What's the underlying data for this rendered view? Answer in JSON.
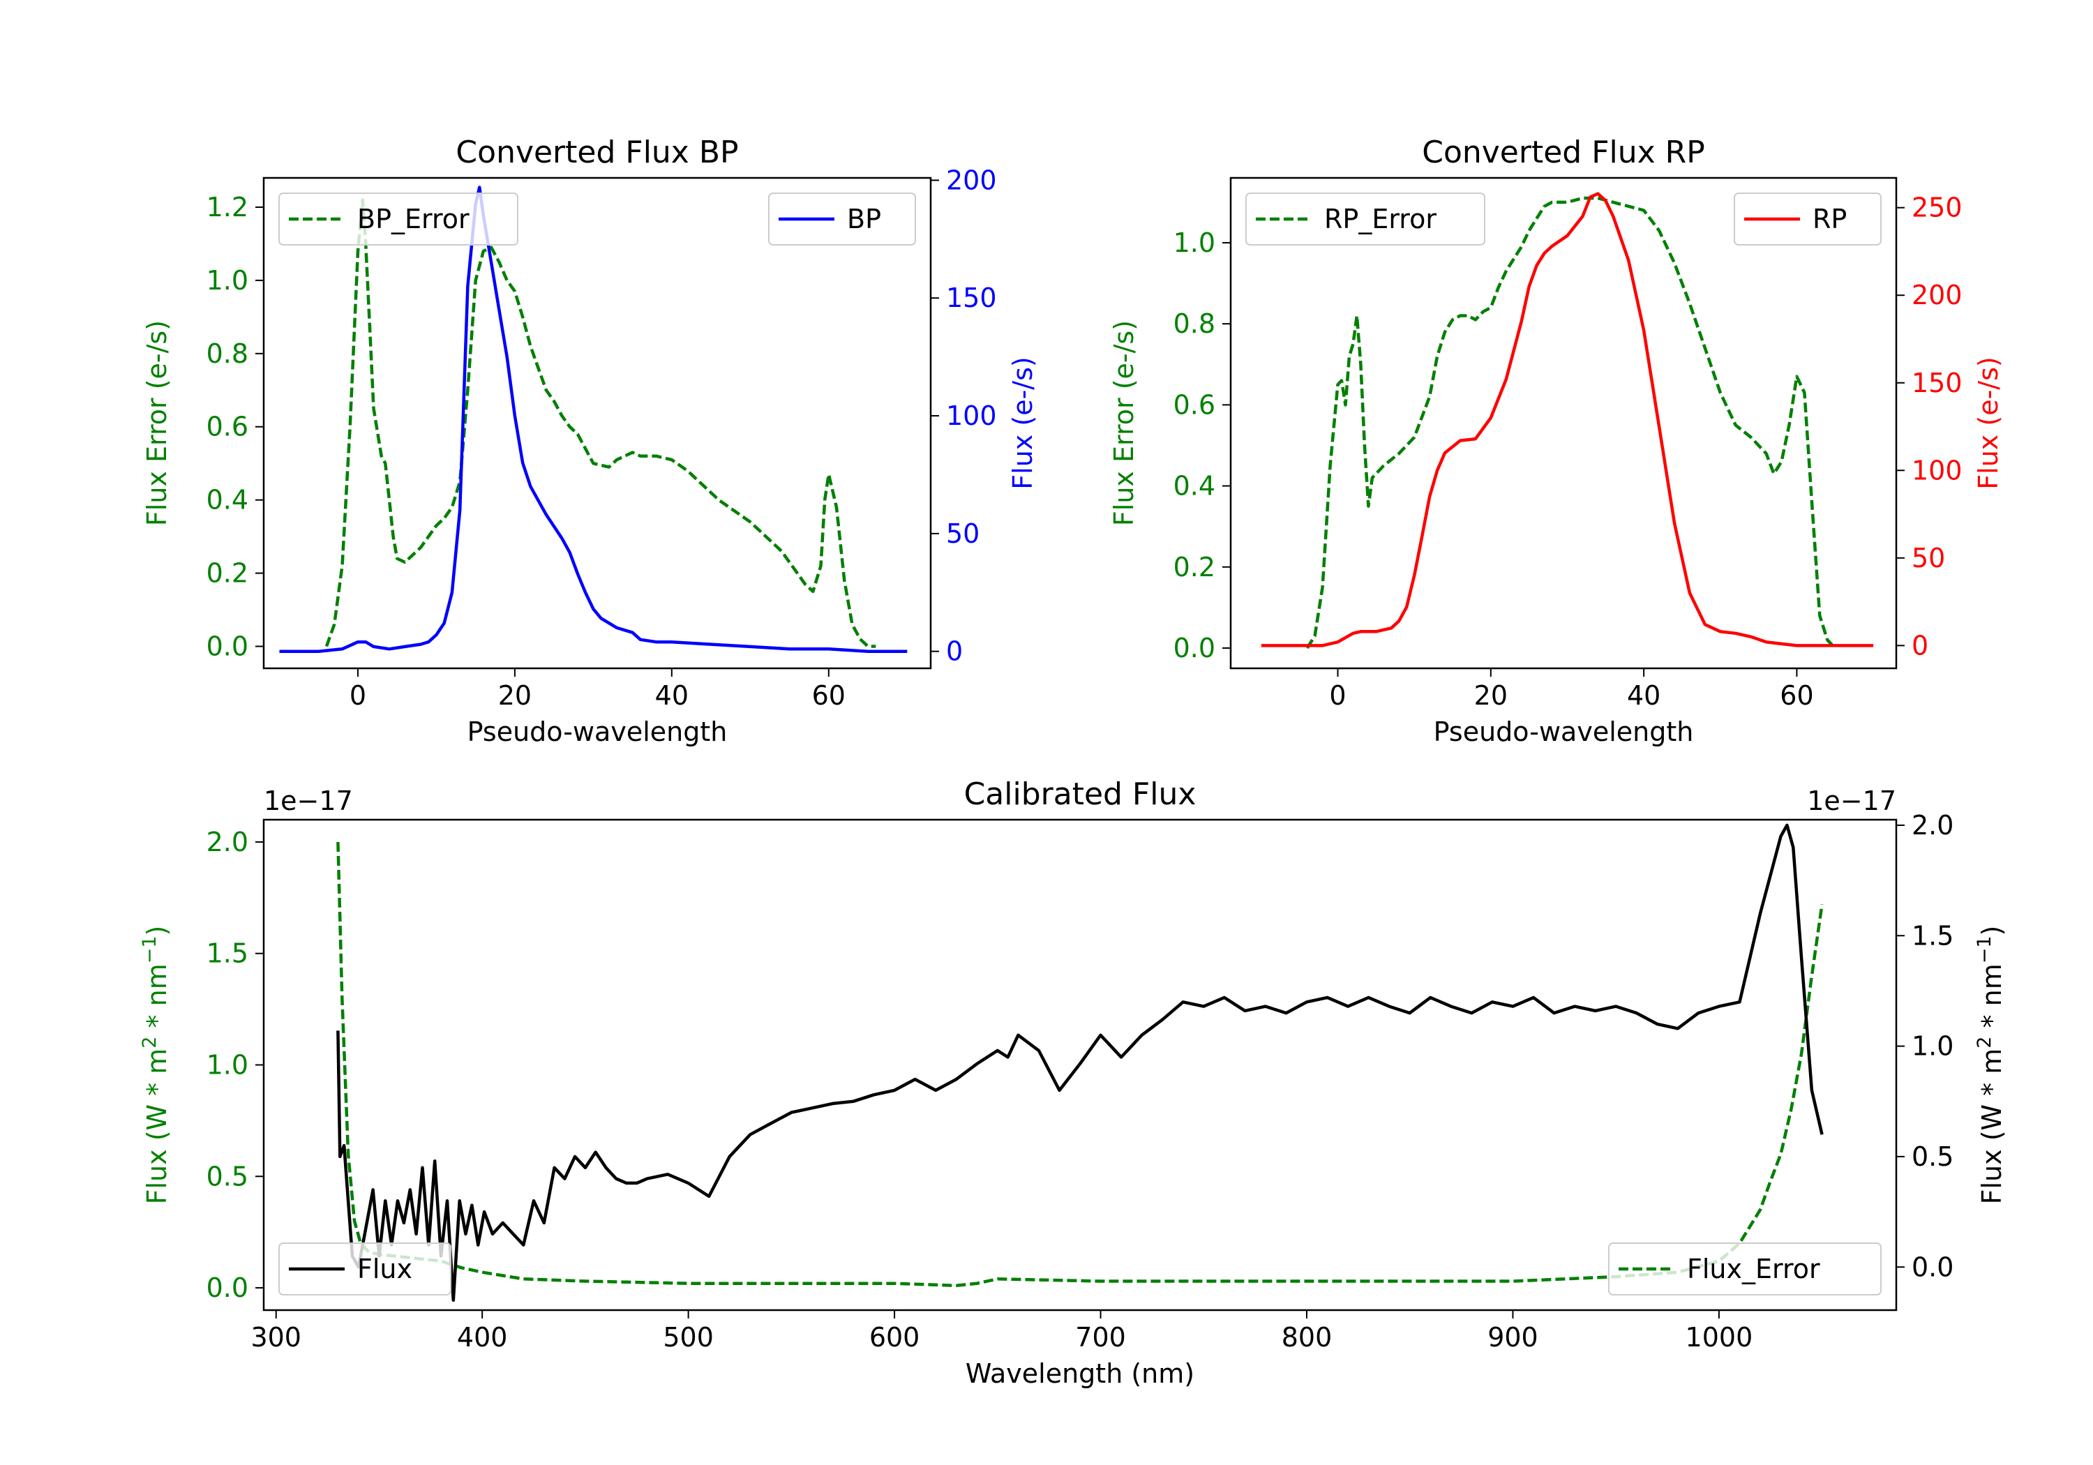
{
  "chart_data": [
    {
      "id": "bp",
      "type": "line",
      "title": "Converted Flux BP",
      "xlabel": "Pseudo-wavelength",
      "ylabel_left": "Flux Error (e-/s)",
      "ylabel_right": "Flux (e-/s)",
      "xlim": [
        -12,
        73
      ],
      "ylim_left": [
        -0.06,
        1.28
      ],
      "ylim_right": [
        -7.2,
        201
      ],
      "xticks": [
        "0",
        "20",
        "40",
        "60"
      ],
      "xtick_values": [
        0,
        20,
        40,
        60
      ],
      "yticks_left": [
        "0.0",
        "0.2",
        "0.4",
        "0.6",
        "0.8",
        "1.0",
        "1.2"
      ],
      "ytick_left_values": [
        0.0,
        0.2,
        0.4,
        0.6,
        0.8,
        1.0,
        1.2
      ],
      "yticks_right": [
        "0",
        "50",
        "100",
        "150",
        "200"
      ],
      "ytick_right_values": [
        0,
        50,
        100,
        150,
        200
      ],
      "left_color": "#008000",
      "right_color": "#0000ff",
      "series": [
        {
          "name": "BP_Error",
          "axis": "left",
          "color": "#008000",
          "style": "dashed",
          "x": [
            -4,
            -3,
            -2,
            -1,
            0,
            0.6,
            1,
            1.5,
            2,
            3,
            3.5,
            4,
            4.5,
            5,
            6,
            7,
            8,
            10,
            11,
            12,
            13,
            14,
            15,
            16,
            17,
            18,
            19,
            20,
            21,
            22,
            23,
            24,
            25,
            26,
            27,
            28,
            30,
            32,
            33,
            34,
            35,
            36,
            38,
            40,
            42,
            44,
            46,
            48,
            50,
            52,
            54,
            56,
            57,
            58,
            59,
            59.5,
            60,
            61,
            62,
            63,
            64,
            65,
            66
          ],
          "y": [
            0.0,
            0.06,
            0.22,
            0.6,
            1.08,
            1.22,
            1.1,
            0.88,
            0.65,
            0.52,
            0.5,
            0.4,
            0.3,
            0.24,
            0.23,
            0.25,
            0.27,
            0.33,
            0.35,
            0.38,
            0.45,
            0.7,
            1.0,
            1.08,
            1.09,
            1.05,
            1.0,
            0.97,
            0.9,
            0.82,
            0.76,
            0.7,
            0.67,
            0.63,
            0.6,
            0.58,
            0.5,
            0.49,
            0.51,
            0.52,
            0.53,
            0.52,
            0.52,
            0.51,
            0.48,
            0.44,
            0.4,
            0.37,
            0.34,
            0.3,
            0.26,
            0.2,
            0.17,
            0.15,
            0.22,
            0.4,
            0.47,
            0.38,
            0.18,
            0.06,
            0.02,
            0.0,
            0.0
          ]
        },
        {
          "name": "BP",
          "axis": "right",
          "color": "#0000ff",
          "style": "solid",
          "x": [
            -10,
            -5,
            -2,
            0,
            1,
            2,
            4,
            6,
            8,
            9,
            10,
            11,
            12,
            13,
            14,
            15,
            15.5,
            16,
            17,
            18,
            19,
            20,
            21,
            22,
            24,
            26,
            27,
            28,
            29,
            30,
            31,
            33,
            35,
            36,
            38,
            40,
            45,
            50,
            55,
            60,
            65,
            70
          ],
          "y": [
            0,
            0,
            1,
            4,
            4,
            2,
            1,
            2,
            3,
            4,
            7,
            12,
            25,
            60,
            155,
            190,
            197,
            185,
            165,
            145,
            125,
            100,
            80,
            70,
            58,
            48,
            42,
            33,
            25,
            18,
            14,
            10,
            8,
            5,
            4,
            4,
            3,
            2,
            1,
            1,
            0,
            0
          ]
        }
      ]
    },
    {
      "id": "rp",
      "type": "line",
      "title": "Converted Flux RP",
      "xlabel": "Pseudo-wavelength",
      "ylabel_left": "Flux Error (e-/s)",
      "ylabel_right": "Flux (e-/s)",
      "xlim": [
        -14,
        73
      ],
      "ylim_left": [
        -0.05,
        1.16
      ],
      "ylim_right": [
        -13,
        267
      ],
      "xticks": [
        "0",
        "20",
        "40",
        "60"
      ],
      "xtick_values": [
        0,
        20,
        40,
        60
      ],
      "yticks_left": [
        "0.0",
        "0.2",
        "0.4",
        "0.6",
        "0.8",
        "1.0"
      ],
      "ytick_left_values": [
        0.0,
        0.2,
        0.4,
        0.6,
        0.8,
        1.0
      ],
      "yticks_right": [
        "0",
        "50",
        "100",
        "150",
        "200",
        "250"
      ],
      "ytick_right_values": [
        0,
        50,
        100,
        150,
        200,
        250
      ],
      "left_color": "#008000",
      "right_color": "#ff0000",
      "series": [
        {
          "name": "RP_Error",
          "axis": "left",
          "color": "#008000",
          "style": "dashed",
          "x": [
            -4,
            -3,
            -2,
            -1,
            0,
            0.5,
            1,
            1.5,
            2,
            2.5,
            3,
            3.5,
            4,
            4.5,
            5,
            6,
            8,
            10,
            12,
            13,
            14,
            15,
            16,
            17,
            18,
            19,
            20,
            21,
            22,
            23,
            24,
            25,
            26,
            27,
            28,
            30,
            32,
            34,
            36,
            38,
            40,
            42,
            44,
            46,
            48,
            50,
            52,
            54,
            56,
            57,
            58,
            59,
            60,
            61,
            62,
            63,
            64,
            65
          ],
          "y": [
            0.0,
            0.03,
            0.15,
            0.45,
            0.65,
            0.66,
            0.6,
            0.72,
            0.75,
            0.82,
            0.7,
            0.5,
            0.35,
            0.42,
            0.43,
            0.45,
            0.48,
            0.52,
            0.62,
            0.72,
            0.78,
            0.81,
            0.82,
            0.82,
            0.81,
            0.83,
            0.84,
            0.89,
            0.93,
            0.96,
            0.99,
            1.03,
            1.06,
            1.09,
            1.1,
            1.1,
            1.11,
            1.11,
            1.1,
            1.09,
            1.08,
            1.03,
            0.95,
            0.85,
            0.74,
            0.63,
            0.55,
            0.52,
            0.48,
            0.43,
            0.46,
            0.55,
            0.67,
            0.63,
            0.35,
            0.08,
            0.02,
            0.0
          ]
        },
        {
          "name": "RP",
          "axis": "right",
          "color": "#ff0000",
          "style": "solid",
          "x": [
            -10,
            -5,
            -2,
            0,
            2,
            3,
            5,
            7,
            8,
            9,
            10,
            11,
            12,
            13,
            14,
            16,
            18,
            20,
            22,
            24,
            25,
            26,
            27,
            28,
            30,
            32,
            33,
            34,
            35,
            36,
            38,
            40,
            42,
            44,
            46,
            48,
            50,
            52,
            54,
            56,
            58,
            60,
            62,
            65,
            70
          ],
          "y": [
            0,
            0,
            0,
            2,
            7,
            8,
            8,
            10,
            14,
            22,
            40,
            62,
            85,
            100,
            110,
            117,
            118,
            130,
            152,
            185,
            205,
            217,
            224,
            228,
            234,
            245,
            256,
            258,
            254,
            245,
            220,
            180,
            125,
            70,
            30,
            12,
            8,
            7,
            5,
            2,
            1,
            0,
            0,
            0,
            0
          ]
        }
      ]
    },
    {
      "id": "calibrated",
      "type": "line",
      "title": "Calibrated Flux",
      "xlabel": "Wavelength (nm)",
      "ylabel_left": "Flux (W * m",
      "ylabel_right": "Flux (W * m",
      "ylabel_m_exp": "2",
      "ylabel_mid": " * nm",
      "ylabel_nm_exp": "−1",
      "ylabel_end": ")",
      "offset_left": "1e−17",
      "offset_right": "1e−17",
      "xlim": [
        294,
        1086
      ],
      "ylim_left": [
        -0.1,
        2.1
      ],
      "ylim_right": [
        -0.195,
        2.025
      ],
      "xticks": [
        "300",
        "400",
        "500",
        "600",
        "700",
        "800",
        "900",
        "1000"
      ],
      "xtick_values": [
        300,
        400,
        500,
        600,
        700,
        800,
        900,
        1000
      ],
      "yticks_left": [
        "0.0",
        "0.5",
        "1.0",
        "1.5",
        "2.0"
      ],
      "ytick_left_values": [
        0.0,
        0.5,
        1.0,
        1.5,
        2.0
      ],
      "yticks_right": [
        "0.0",
        "0.5",
        "1.0",
        "1.5",
        "2.0"
      ],
      "ytick_right_values": [
        0.0,
        0.5,
        1.0,
        1.5,
        2.0
      ],
      "left_color": "#008000",
      "right_color": "#000000",
      "series": [
        {
          "name": "Flux_Error",
          "axis": "left",
          "color": "#008000",
          "style": "dashed",
          "x": [
            330,
            332,
            335,
            338,
            341,
            345,
            350,
            360,
            370,
            380,
            390,
            400,
            420,
            450,
            500,
            550,
            600,
            630,
            640,
            650,
            700,
            800,
            900,
            950,
            980,
            1000,
            1010,
            1020,
            1025,
            1030,
            1035,
            1040,
            1045,
            1050
          ],
          "y": [
            2.0,
            1.3,
            0.6,
            0.3,
            0.2,
            0.16,
            0.15,
            0.14,
            0.13,
            0.12,
            0.09,
            0.07,
            0.04,
            0.03,
            0.02,
            0.02,
            0.02,
            0.01,
            0.02,
            0.04,
            0.03,
            0.03,
            0.03,
            0.05,
            0.07,
            0.12,
            0.2,
            0.35,
            0.48,
            0.6,
            0.8,
            1.05,
            1.4,
            1.72
          ]
        },
        {
          "name": "Flux",
          "axis": "right",
          "color": "#000000",
          "style": "solid",
          "x": [
            330,
            331,
            333,
            335,
            337,
            340,
            343,
            347,
            350,
            353,
            356,
            359,
            362,
            365,
            368,
            371,
            374,
            377,
            380,
            383,
            386,
            389,
            392,
            395,
            398,
            401,
            405,
            410,
            415,
            420,
            425,
            430,
            435,
            440,
            445,
            450,
            455,
            460,
            465,
            470,
            475,
            480,
            490,
            500,
            510,
            520,
            530,
            540,
            550,
            560,
            570,
            580,
            590,
            600,
            610,
            620,
            630,
            640,
            650,
            655,
            660,
            670,
            680,
            690,
            700,
            705,
            710,
            720,
            730,
            740,
            750,
            760,
            770,
            780,
            790,
            800,
            810,
            820,
            830,
            840,
            850,
            860,
            870,
            880,
            890,
            900,
            910,
            920,
            930,
            940,
            950,
            960,
            970,
            980,
            990,
            1000,
            1010,
            1020,
            1030,
            1033,
            1036,
            1040,
            1045,
            1050
          ],
          "y": [
            1.07,
            0.5,
            0.55,
            0.3,
            0.05,
            0.0,
            0.15,
            0.35,
            0.05,
            0.3,
            0.1,
            0.3,
            0.2,
            0.35,
            0.15,
            0.45,
            0.1,
            0.48,
            0.05,
            0.3,
            -0.15,
            0.3,
            0.15,
            0.28,
            0.1,
            0.25,
            0.15,
            0.2,
            0.15,
            0.1,
            0.3,
            0.2,
            0.45,
            0.4,
            0.5,
            0.45,
            0.52,
            0.45,
            0.4,
            0.38,
            0.38,
            0.4,
            0.42,
            0.38,
            0.32,
            0.5,
            0.6,
            0.65,
            0.7,
            0.72,
            0.74,
            0.75,
            0.78,
            0.8,
            0.85,
            0.8,
            0.85,
            0.92,
            0.98,
            0.95,
            1.05,
            0.98,
            0.8,
            0.92,
            1.05,
            1.0,
            0.95,
            1.05,
            1.12,
            1.2,
            1.18,
            1.22,
            1.16,
            1.18,
            1.15,
            1.2,
            1.22,
            1.18,
            1.22,
            1.18,
            1.15,
            1.22,
            1.18,
            1.15,
            1.2,
            1.18,
            1.22,
            1.15,
            1.18,
            1.16,
            1.18,
            1.15,
            1.1,
            1.08,
            1.15,
            1.18,
            1.2,
            1.6,
            1.95,
            2.0,
            1.9,
            1.4,
            0.8,
            0.6
          ]
        }
      ]
    }
  ]
}
